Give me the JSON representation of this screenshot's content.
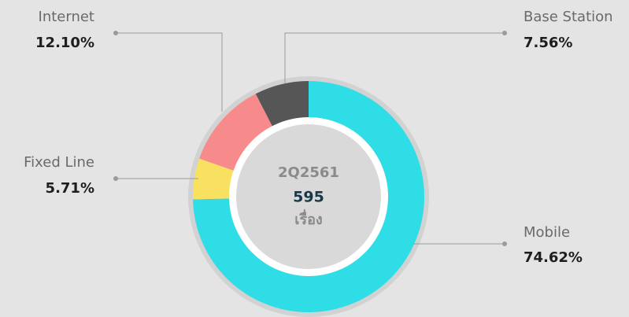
{
  "chart_data": {
    "type": "donut",
    "categories": [
      "Mobile",
      "Fixed Line",
      "Internet",
      "Base Station"
    ],
    "values": [
      74.62,
      5.71,
      12.1,
      7.56
    ],
    "value_labels": [
      "74.62%",
      "5.71%",
      "12.10%",
      "7.56%"
    ],
    "colors": [
      "#2fdde6",
      "#f8e060",
      "#f78b8b",
      "#565656"
    ],
    "center_title": "2Q2561",
    "center_value": 595,
    "center_unit": "เรื่อง"
  }
}
